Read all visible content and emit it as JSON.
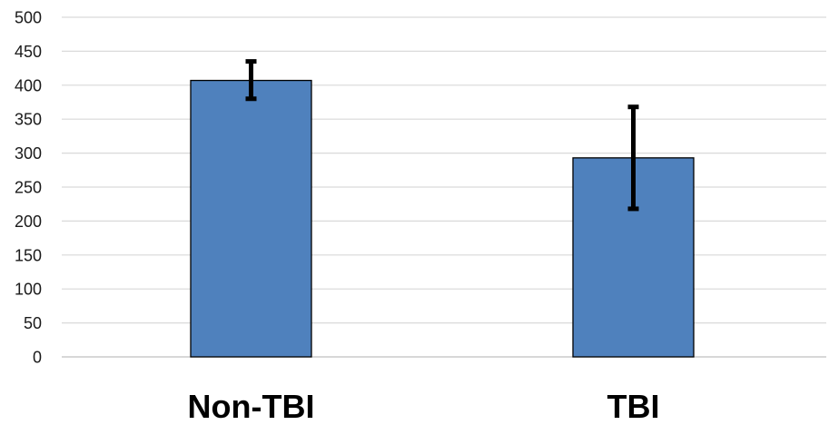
{
  "chart_data": {
    "type": "bar",
    "title": "",
    "xlabel": "",
    "ylabel": "",
    "categories": [
      "Non-TBI",
      "TBI"
    ],
    "values": [
      407,
      293
    ],
    "error_bars": [
      {
        "low": 380,
        "high": 435
      },
      {
        "low": 218,
        "high": 368
      }
    ],
    "ylim": [
      0,
      500
    ],
    "yticks": [
      "0",
      "50",
      "100",
      "150",
      "200",
      "250",
      "300",
      "350",
      "400",
      "450",
      "500"
    ],
    "grid": true,
    "legend": "none",
    "colors": {
      "bar": "#4f81bd",
      "bar_outline": "#000000",
      "error_bar": "#000000",
      "grid": "#d9d9d9",
      "axis": "#bfbfbf"
    }
  }
}
